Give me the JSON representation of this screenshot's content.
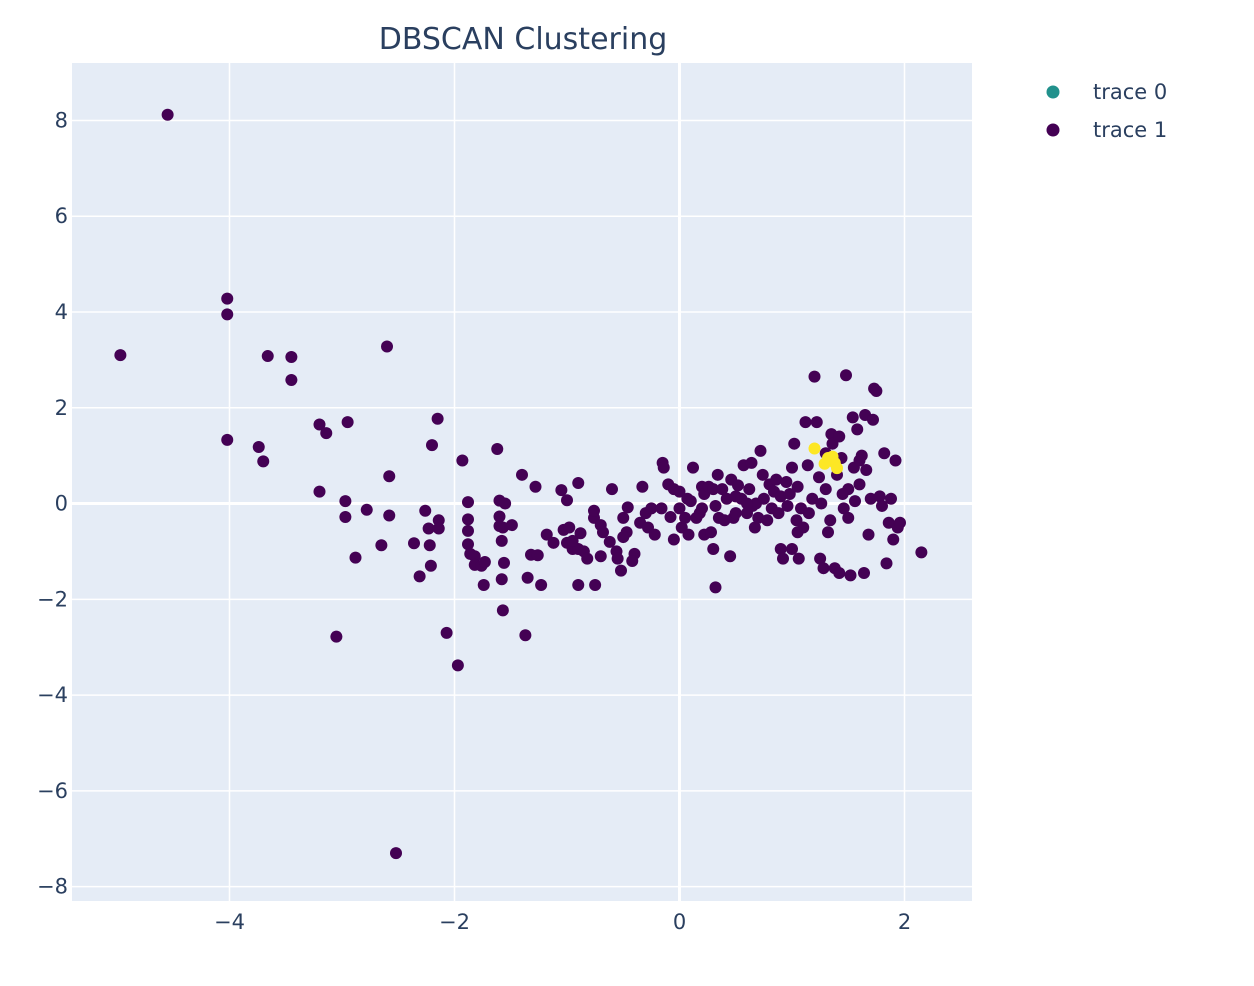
{
  "chart_data": {
    "type": "scatter",
    "title": "DBSCAN Clustering",
    "xlabel": "",
    "ylabel": "",
    "xlim": [
      -5.4,
      2.6
    ],
    "ylim": [
      -8.3,
      9.2
    ],
    "x_ticks": [
      -4,
      -2,
      0,
      2
    ],
    "x_tick_labels": [
      "−4",
      "−2",
      "0",
      "2"
    ],
    "y_ticks": [
      -8,
      -6,
      -4,
      -2,
      0,
      2,
      4,
      6,
      8
    ],
    "y_tick_labels": [
      "−8",
      "−6",
      "−4",
      "−2",
      "0",
      "2",
      "4",
      "6",
      "8"
    ],
    "grid": true,
    "legend_position": "top-right",
    "colors": {
      "plot_bg": "#e5ecf6",
      "grid": "#ffffff",
      "text": "#2a3f5f",
      "noise": "#440154",
      "cluster": "#fde725",
      "legend_trace0": "#21918c"
    },
    "legend": [
      {
        "label": "trace 0",
        "color": "#21918c"
      },
      {
        "label": "trace 1",
        "color": "#440154"
      }
    ],
    "series": [
      {
        "name": "trace 0",
        "color": "#fde725",
        "points": [
          [
            1.2,
            1.15
          ],
          [
            1.32,
            0.95
          ],
          [
            1.36,
            0.98
          ],
          [
            1.38,
            0.85
          ],
          [
            1.4,
            0.74
          ],
          [
            1.29,
            0.83
          ]
        ]
      },
      {
        "name": "trace 1",
        "color": "#440154",
        "points": [
          [
            -4.55,
            8.12
          ],
          [
            -4.02,
            4.28
          ],
          [
            -4.02,
            3.95
          ],
          [
            -4.97,
            3.1
          ],
          [
            -3.66,
            3.08
          ],
          [
            -3.45,
            3.06
          ],
          [
            -3.45,
            2.58
          ],
          [
            -2.6,
            3.28
          ],
          [
            -4.02,
            1.33
          ],
          [
            -3.74,
            1.18
          ],
          [
            -3.7,
            0.88
          ],
          [
            -3.2,
            1.65
          ],
          [
            -3.14,
            1.47
          ],
          [
            -2.95,
            1.7
          ],
          [
            -2.15,
            1.77
          ],
          [
            -2.2,
            1.22
          ],
          [
            -1.62,
            1.14
          ],
          [
            -1.93,
            0.9
          ],
          [
            -2.58,
            0.57
          ],
          [
            -1.4,
            0.6
          ],
          [
            -3.2,
            0.25
          ],
          [
            -2.97,
            0.05
          ],
          [
            -2.97,
            -0.28
          ],
          [
            -2.78,
            -0.13
          ],
          [
            -2.58,
            -0.25
          ],
          [
            -2.26,
            -0.15
          ],
          [
            -2.23,
            -0.52
          ],
          [
            -2.14,
            -0.35
          ],
          [
            -2.14,
            -0.52
          ],
          [
            -2.65,
            -0.87
          ],
          [
            -2.88,
            -1.13
          ],
          [
            -2.36,
            -0.83
          ],
          [
            -2.22,
            -0.87
          ],
          [
            -2.21,
            -1.3
          ],
          [
            -2.31,
            -1.52
          ],
          [
            -1.88,
            0.03
          ],
          [
            -1.88,
            -0.33
          ],
          [
            -1.88,
            -0.57
          ],
          [
            -1.88,
            -0.85
          ],
          [
            -1.86,
            -1.05
          ],
          [
            -1.82,
            -1.1
          ],
          [
            -1.82,
            -1.28
          ],
          [
            -1.76,
            -1.3
          ],
          [
            -1.73,
            -1.22
          ],
          [
            -1.74,
            -1.7
          ],
          [
            -1.6,
            0.06
          ],
          [
            -1.55,
            0.0
          ],
          [
            -1.6,
            -0.27
          ],
          [
            -1.6,
            -0.47
          ],
          [
            -1.57,
            -0.5
          ],
          [
            -1.58,
            -0.78
          ],
          [
            -1.56,
            -1.24
          ],
          [
            -1.58,
            -1.58
          ],
          [
            -1.57,
            -2.23
          ],
          [
            -1.49,
            -0.45
          ],
          [
            -1.28,
            0.35
          ],
          [
            -1.32,
            -1.07
          ],
          [
            -1.26,
            -1.08
          ],
          [
            -1.35,
            -1.55
          ],
          [
            -1.23,
            -1.7
          ],
          [
            -1.37,
            -2.75
          ],
          [
            -1.18,
            -0.65
          ],
          [
            -1.12,
            -0.82
          ],
          [
            -1.05,
            0.28
          ],
          [
            -1.0,
            0.07
          ],
          [
            -0.9,
            0.43
          ],
          [
            -1.03,
            -0.55
          ],
          [
            -0.98,
            -0.5
          ],
          [
            -1.0,
            -0.82
          ],
          [
            -0.95,
            -0.95
          ],
          [
            -0.9,
            -0.95
          ],
          [
            -0.88,
            -0.62
          ],
          [
            -0.85,
            -1.0
          ],
          [
            -0.82,
            -1.15
          ],
          [
            -0.9,
            -1.7
          ],
          [
            -0.76,
            -0.3
          ],
          [
            -0.76,
            -0.15
          ],
          [
            -0.7,
            -0.45
          ],
          [
            -0.68,
            -0.6
          ],
          [
            -0.7,
            -1.1
          ],
          [
            -0.75,
            -1.7
          ],
          [
            -0.6,
            0.3
          ],
          [
            -0.62,
            -0.8
          ],
          [
            -0.56,
            -1.0
          ],
          [
            -0.55,
            -1.15
          ],
          [
            -0.52,
            -1.4
          ],
          [
            -0.5,
            -0.3
          ],
          [
            -0.47,
            -0.6
          ],
          [
            -0.46,
            -0.08
          ],
          [
            -0.4,
            -1.05
          ],
          [
            -0.42,
            -1.2
          ],
          [
            -0.35,
            -0.4
          ],
          [
            -0.3,
            -0.2
          ],
          [
            -0.28,
            -0.5
          ],
          [
            -0.25,
            -0.1
          ],
          [
            -0.22,
            -0.65
          ],
          [
            -0.33,
            0.35
          ],
          [
            -0.16,
            -0.1
          ],
          [
            -0.15,
            0.85
          ],
          [
            -0.14,
            0.75
          ],
          [
            -0.1,
            0.4
          ],
          [
            -0.08,
            -0.28
          ],
          [
            -0.05,
            0.3
          ],
          [
            -0.05,
            -0.75
          ],
          [
            0.0,
            0.25
          ],
          [
            0.02,
            -0.5
          ],
          [
            0.05,
            -0.3
          ],
          [
            0.07,
            0.1
          ],
          [
            0.08,
            -0.65
          ],
          [
            0.1,
            0.05
          ],
          [
            0.12,
            0.75
          ],
          [
            0.15,
            -0.3
          ],
          [
            0.18,
            -0.2
          ],
          [
            0.2,
            0.35
          ],
          [
            0.22,
            0.2
          ],
          [
            0.22,
            -0.65
          ],
          [
            0.26,
            0.35
          ],
          [
            0.28,
            -0.6
          ],
          [
            0.3,
            -0.95
          ],
          [
            0.3,
            0.3
          ],
          [
            0.32,
            -0.05
          ],
          [
            0.32,
            -1.75
          ],
          [
            0.34,
            0.6
          ],
          [
            0.35,
            -0.3
          ],
          [
            0.38,
            0.3
          ],
          [
            0.4,
            -0.35
          ],
          [
            0.42,
            0.1
          ],
          [
            0.45,
            -1.1
          ],
          [
            0.46,
            0.5
          ],
          [
            0.48,
            -0.3
          ],
          [
            0.5,
            0.15
          ],
          [
            0.52,
            0.38
          ],
          [
            0.55,
            0.1
          ],
          [
            0.57,
            0.8
          ],
          [
            0.6,
            -0.2
          ],
          [
            0.62,
            0.3
          ],
          [
            0.64,
            0.85
          ],
          [
            0.65,
            -0.05
          ],
          [
            0.67,
            -0.5
          ],
          [
            0.68,
            0.0
          ],
          [
            0.7,
            -0.3
          ],
          [
            0.72,
            1.1
          ],
          [
            0.74,
            0.6
          ],
          [
            0.75,
            0.1
          ],
          [
            0.78,
            -0.35
          ],
          [
            0.8,
            0.4
          ],
          [
            0.82,
            -0.1
          ],
          [
            0.84,
            0.25
          ],
          [
            0.86,
            0.5
          ],
          [
            0.88,
            -0.2
          ],
          [
            0.9,
            -0.95
          ],
          [
            0.9,
            0.15
          ],
          [
            0.92,
            -1.15
          ],
          [
            0.95,
            0.45
          ],
          [
            0.96,
            -0.05
          ],
          [
            0.98,
            0.2
          ],
          [
            1.0,
            -0.95
          ],
          [
            1.0,
            0.75
          ],
          [
            1.02,
            1.25
          ],
          [
            1.04,
            -0.35
          ],
          [
            1.05,
            0.35
          ],
          [
            1.06,
            -1.15
          ],
          [
            1.08,
            -0.1
          ],
          [
            1.1,
            -0.5
          ],
          [
            1.12,
            1.7
          ],
          [
            1.14,
            0.8
          ],
          [
            1.15,
            -0.2
          ],
          [
            1.18,
            0.1
          ],
          [
            1.2,
            2.65
          ],
          [
            1.22,
            1.7
          ],
          [
            1.24,
            0.55
          ],
          [
            1.25,
            -1.15
          ],
          [
            1.26,
            0.0
          ],
          [
            1.28,
            -1.35
          ],
          [
            1.3,
            1.05
          ],
          [
            1.3,
            0.3
          ],
          [
            1.32,
            -0.6
          ],
          [
            1.34,
            -0.35
          ],
          [
            1.35,
            1.45
          ],
          [
            1.36,
            1.25
          ],
          [
            1.38,
            -1.35
          ],
          [
            1.4,
            0.6
          ],
          [
            1.42,
            1.4
          ],
          [
            1.42,
            -1.45
          ],
          [
            1.44,
            0.95
          ],
          [
            1.46,
            -0.1
          ],
          [
            1.48,
            2.68
          ],
          [
            1.5,
            0.3
          ],
          [
            1.5,
            -0.3
          ],
          [
            1.52,
            -1.5
          ],
          [
            1.54,
            1.8
          ],
          [
            1.55,
            0.75
          ],
          [
            1.56,
            0.05
          ],
          [
            1.58,
            1.55
          ],
          [
            1.6,
            0.4
          ],
          [
            1.62,
            1.0
          ],
          [
            1.64,
            -1.45
          ],
          [
            1.65,
            1.85
          ],
          [
            1.66,
            0.7
          ],
          [
            1.68,
            -0.65
          ],
          [
            1.7,
            0.1
          ],
          [
            1.72,
            1.75
          ],
          [
            1.73,
            2.4
          ],
          [
            1.75,
            2.35
          ],
          [
            1.78,
            0.15
          ],
          [
            1.8,
            -0.05
          ],
          [
            1.82,
            1.05
          ],
          [
            1.84,
            -1.25
          ],
          [
            1.86,
            -0.4
          ],
          [
            1.88,
            0.1
          ],
          [
            1.9,
            -0.75
          ],
          [
            1.92,
            0.9
          ],
          [
            1.94,
            -0.5
          ],
          [
            1.96,
            -0.4
          ],
          [
            2.15,
            -1.02
          ],
          [
            1.05,
            -0.6
          ],
          [
            0.2,
            -0.1
          ],
          [
            0.5,
            -0.2
          ],
          [
            1.6,
            0.9
          ],
          [
            1.45,
            0.2
          ],
          [
            -2.52,
            -7.3
          ],
          [
            -3.05,
            -2.78
          ],
          [
            -2.07,
            -2.7
          ],
          [
            -1.97,
            -3.38
          ],
          [
            -0.95,
            -0.78
          ],
          [
            -0.5,
            -0.7
          ],
          [
            0.0,
            -0.1
          ],
          [
            0.6,
            0.0
          ]
        ]
      }
    ]
  }
}
